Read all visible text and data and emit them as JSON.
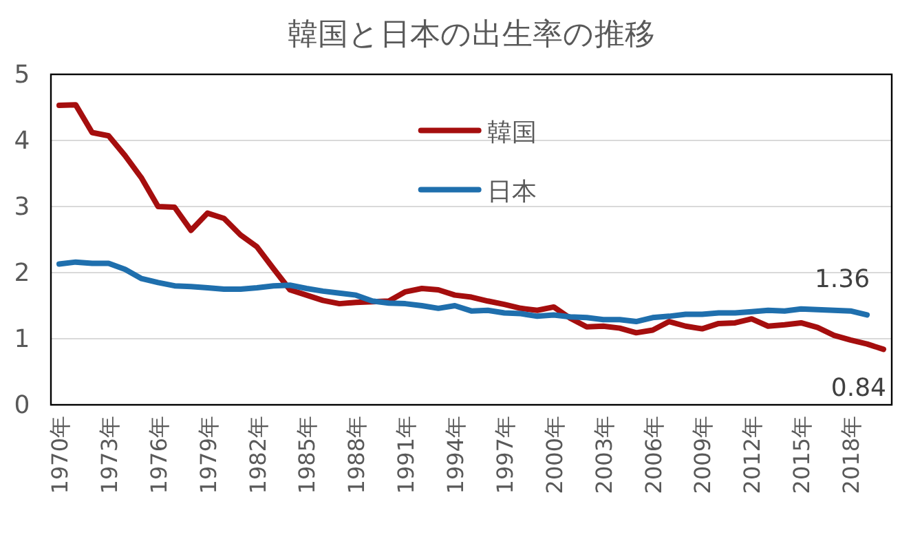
{
  "chart_data": {
    "type": "line",
    "title": "韓国と日本の出生率の推移",
    "categories": [
      "1970年",
      null,
      null,
      "1973年",
      null,
      null,
      "1976年",
      null,
      null,
      "1979年",
      null,
      null,
      "1982年",
      null,
      null,
      "1985年",
      null,
      null,
      "1988年",
      null,
      null,
      "1991年",
      null,
      null,
      "1994年",
      null,
      null,
      "1997年",
      null,
      null,
      "2000年",
      null,
      null,
      "2003年",
      null,
      null,
      "2006年",
      null,
      null,
      "2009年",
      null,
      null,
      "2012年",
      null,
      null,
      "2015年",
      null,
      null,
      "2018年",
      null,
      null
    ],
    "series": [
      {
        "name": "韓国",
        "color": "#a50e0e",
        "values": [
          4.53,
          4.54,
          4.12,
          4.07,
          3.77,
          3.43,
          3.0,
          2.99,
          2.64,
          2.9,
          2.82,
          2.57,
          2.39,
          2.06,
          1.74,
          1.66,
          1.58,
          1.53,
          1.55,
          1.56,
          1.57,
          1.71,
          1.76,
          1.74,
          1.66,
          1.63,
          1.57,
          1.52,
          1.46,
          1.43,
          1.48,
          1.31,
          1.18,
          1.19,
          1.16,
          1.09,
          1.13,
          1.26,
          1.19,
          1.15,
          1.23,
          1.24,
          1.3,
          1.19,
          1.21,
          1.24,
          1.17,
          1.05,
          0.98,
          0.92,
          0.84
        ],
        "value_labels": [
          null,
          null,
          null,
          null,
          null,
          null,
          null,
          null,
          null,
          null,
          null,
          null,
          null,
          null,
          null,
          null,
          null,
          null,
          null,
          null,
          null,
          null,
          null,
          null,
          null,
          null,
          null,
          null,
          null,
          null,
          null,
          null,
          null,
          null,
          null,
          null,
          null,
          null,
          null,
          null,
          null,
          null,
          null,
          null,
          null,
          null,
          null,
          null,
          null,
          null,
          "0.84"
        ]
      },
      {
        "name": "日本",
        "color": "#1f6fad",
        "values": [
          2.13,
          2.16,
          2.14,
          2.14,
          2.05,
          1.91,
          1.85,
          1.8,
          1.79,
          1.77,
          1.75,
          1.75,
          1.77,
          1.8,
          1.81,
          1.76,
          1.72,
          1.69,
          1.66,
          1.57,
          1.54,
          1.53,
          1.5,
          1.46,
          1.5,
          1.42,
          1.43,
          1.39,
          1.38,
          1.34,
          1.36,
          1.33,
          1.32,
          1.29,
          1.29,
          1.26,
          1.32,
          1.34,
          1.37,
          1.37,
          1.39,
          1.39,
          1.41,
          1.43,
          1.42,
          1.45,
          1.44,
          1.43,
          1.42,
          1.36,
          null
        ],
        "value_labels": [
          null,
          null,
          null,
          null,
          null,
          null,
          null,
          null,
          null,
          null,
          null,
          null,
          null,
          null,
          null,
          null,
          null,
          null,
          null,
          null,
          null,
          null,
          null,
          null,
          null,
          null,
          null,
          null,
          null,
          null,
          null,
          null,
          null,
          null,
          null,
          null,
          null,
          null,
          null,
          null,
          null,
          null,
          null,
          null,
          null,
          null,
          null,
          null,
          null,
          "1.36",
          null
        ]
      }
    ],
    "ylim": [
      0,
      5
    ],
    "yticks": [
      0,
      1,
      2,
      3,
      4,
      5
    ],
    "grid": "y",
    "legend": "top"
  }
}
